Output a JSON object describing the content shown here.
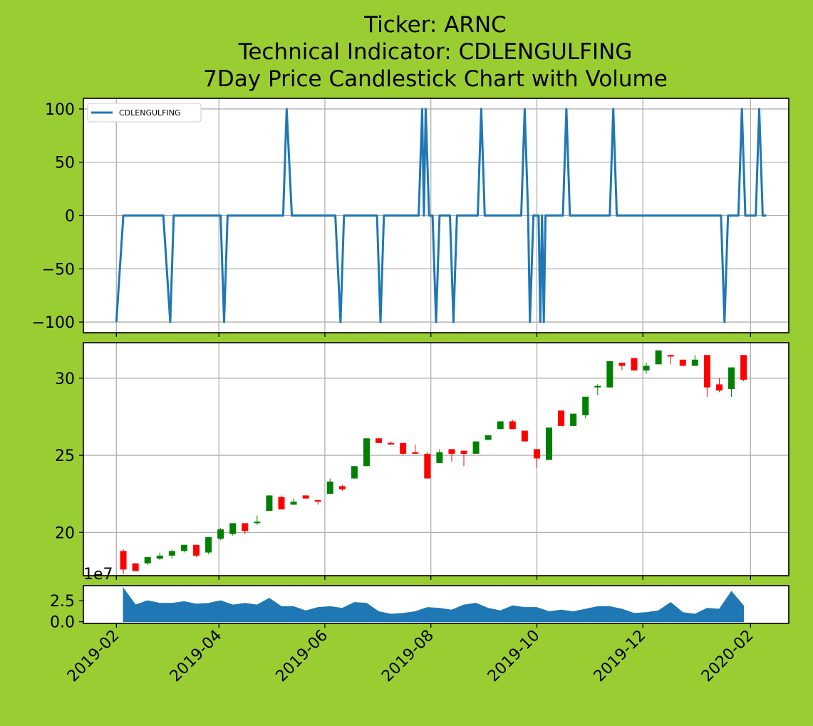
{
  "figure": {
    "background": "#9acd32",
    "title_lines": [
      "Ticker: ARNC",
      "Technical Indicator: CDLENGULFING",
      "7Day Price Candlestick Chart with Volume"
    ],
    "volume_offset_label": "1e7"
  },
  "chart_data": [
    {
      "type": "line",
      "panel": "indicator",
      "series": [
        {
          "name": "CDLENGULFING",
          "color": "#1f77b4",
          "points": [
            [
              "2019-02-01",
              -100
            ],
            [
              "2019-02-05",
              0
            ],
            [
              "2019-02-28",
              0
            ],
            [
              "2019-03-04",
              -100
            ],
            [
              "2019-03-06",
              0
            ],
            [
              "2019-04-02",
              0
            ],
            [
              "2019-04-04",
              -100
            ],
            [
              "2019-04-06",
              0
            ],
            [
              "2019-05-08",
              0
            ],
            [
              "2019-05-10",
              100
            ],
            [
              "2019-05-13",
              0
            ],
            [
              "2019-06-07",
              0
            ],
            [
              "2019-06-10",
              -100
            ],
            [
              "2019-06-12",
              0
            ],
            [
              "2019-07-01",
              0
            ],
            [
              "2019-07-03",
              -100
            ],
            [
              "2019-07-05",
              0
            ],
            [
              "2019-07-25",
              0
            ],
            [
              "2019-07-27",
              100
            ],
            [
              "2019-07-28",
              0
            ],
            [
              "2019-07-29",
              100
            ],
            [
              "2019-07-31",
              0
            ],
            [
              "2019-08-02",
              0
            ],
            [
              "2019-08-04",
              -100
            ],
            [
              "2019-08-06",
              0
            ],
            [
              "2019-08-12",
              0
            ],
            [
              "2019-08-14",
              -100
            ],
            [
              "2019-08-16",
              0
            ],
            [
              "2019-08-28",
              0
            ],
            [
              "2019-08-30",
              100
            ],
            [
              "2019-09-01",
              0
            ],
            [
              "2019-09-22",
              0
            ],
            [
              "2019-09-24",
              100
            ],
            [
              "2019-09-26",
              0
            ],
            [
              "2019-09-27",
              -100
            ],
            [
              "2019-09-29",
              0
            ],
            [
              "2019-10-02",
              0
            ],
            [
              "2019-10-03",
              -100
            ],
            [
              "2019-10-04",
              0
            ],
            [
              "2019-10-05",
              -100
            ],
            [
              "2019-10-06",
              0
            ],
            [
              "2019-10-16",
              0
            ],
            [
              "2019-10-18",
              100
            ],
            [
              "2019-10-20",
              0
            ],
            [
              "2019-11-12",
              0
            ],
            [
              "2019-11-14",
              100
            ],
            [
              "2019-11-16",
              0
            ],
            [
              "2020-01-15",
              0
            ],
            [
              "2020-01-17",
              -100
            ],
            [
              "2020-01-19",
              0
            ],
            [
              "2020-01-25",
              0
            ],
            [
              "2020-01-27",
              100
            ],
            [
              "2020-01-29",
              0
            ],
            [
              "2020-02-04",
              0
            ],
            [
              "2020-02-06",
              100
            ],
            [
              "2020-02-08",
              0
            ],
            [
              "2020-02-10",
              0
            ]
          ]
        }
      ],
      "ylim": [
        -110,
        110
      ],
      "yticks": [
        100,
        50,
        0,
        -50,
        -100
      ],
      "yticklabels": [
        "100",
        "50",
        "0",
        "−50",
        "−100"
      ],
      "grid": true,
      "legend": "upper left"
    },
    {
      "type": "candlestick",
      "panel": "price",
      "up_color": "#008000",
      "down_color": "#ff0000",
      "candles": [
        [
          "2019-02-05",
          18.8,
          17.6,
          18.9,
          17.3
        ],
        [
          "2019-02-12",
          18.0,
          17.5,
          18.0,
          17.5
        ],
        [
          "2019-02-19",
          18.0,
          18.4,
          18.4,
          17.9
        ],
        [
          "2019-02-26",
          18.3,
          18.5,
          18.7,
          18.2
        ],
        [
          "2019-03-05",
          18.5,
          18.8,
          18.9,
          18.3
        ],
        [
          "2019-03-12",
          18.8,
          19.2,
          19.2,
          18.7
        ],
        [
          "2019-03-19",
          19.2,
          18.5,
          19.2,
          18.4
        ],
        [
          "2019-03-26",
          18.7,
          19.7,
          19.7,
          18.6
        ],
        [
          "2019-04-02",
          19.6,
          20.2,
          20.3,
          19.5
        ],
        [
          "2019-04-09",
          19.9,
          20.6,
          20.6,
          19.8
        ],
        [
          "2019-04-16",
          20.6,
          20.1,
          20.6,
          19.9
        ],
        [
          "2019-04-23",
          20.6,
          20.7,
          21.1,
          20.5
        ],
        [
          "2019-04-30",
          21.4,
          22.4,
          22.4,
          21.4
        ],
        [
          "2019-05-07",
          22.3,
          21.5,
          22.4,
          21.5
        ],
        [
          "2019-05-14",
          21.8,
          22.0,
          22.2,
          21.8
        ],
        [
          "2019-05-21",
          22.4,
          22.2,
          22.4,
          22.2
        ],
        [
          "2019-05-28",
          22.1,
          22.0,
          22.1,
          21.8
        ],
        [
          "2019-06-04",
          22.5,
          23.3,
          23.5,
          22.5
        ],
        [
          "2019-06-11",
          23.0,
          22.8,
          23.1,
          22.7
        ],
        [
          "2019-06-18",
          23.5,
          24.3,
          24.3,
          23.5
        ],
        [
          "2019-06-25",
          24.3,
          26.1,
          26.1,
          24.3
        ],
        [
          "2019-07-02",
          26.1,
          25.8,
          26.1,
          25.8
        ],
        [
          "2019-07-09",
          25.8,
          25.7,
          25.9,
          25.7
        ],
        [
          "2019-07-16",
          25.8,
          25.1,
          25.8,
          25.0
        ],
        [
          "2019-07-23",
          25.2,
          25.1,
          25.7,
          25.1
        ],
        [
          "2019-07-30",
          25.1,
          23.5,
          25.2,
          23.5
        ],
        [
          "2019-08-06",
          24.5,
          25.2,
          25.4,
          24.5
        ],
        [
          "2019-08-13",
          25.4,
          25.1,
          25.4,
          24.6
        ],
        [
          "2019-08-20",
          25.3,
          25.1,
          25.3,
          24.3
        ],
        [
          "2019-08-27",
          25.1,
          25.9,
          25.9,
          25.1
        ],
        [
          "2019-09-03",
          26.0,
          26.3,
          26.3,
          26.0
        ],
        [
          "2019-09-10",
          26.7,
          27.2,
          27.2,
          26.7
        ],
        [
          "2019-09-17",
          27.2,
          26.7,
          27.3,
          26.7
        ],
        [
          "2019-09-24",
          26.6,
          25.9,
          26.6,
          25.9
        ],
        [
          "2019-10-01",
          25.4,
          24.8,
          25.4,
          24.2
        ],
        [
          "2019-10-08",
          24.7,
          26.8,
          26.8,
          24.7
        ],
        [
          "2019-10-15",
          27.9,
          26.9,
          27.9,
          26.9
        ],
        [
          "2019-10-22",
          26.9,
          27.7,
          27.7,
          26.9
        ],
        [
          "2019-10-29",
          27.6,
          28.8,
          28.8,
          27.4
        ],
        [
          "2019-11-05",
          29.4,
          29.5,
          29.6,
          28.9
        ],
        [
          "2019-11-12",
          29.4,
          31.1,
          31.1,
          29.4
        ],
        [
          "2019-11-19",
          31.0,
          30.8,
          31.0,
          30.5
        ],
        [
          "2019-11-26",
          31.3,
          30.5,
          31.3,
          30.5
        ],
        [
          "2019-12-03",
          30.5,
          30.8,
          31.0,
          30.3
        ],
        [
          "2019-12-10",
          30.9,
          31.8,
          31.8,
          30.9
        ],
        [
          "2019-12-17",
          31.5,
          31.4,
          31.5,
          30.9
        ],
        [
          "2019-12-24",
          31.2,
          30.8,
          31.2,
          30.8
        ],
        [
          "2019-12-31",
          30.8,
          31.2,
          31.5,
          30.8
        ],
        [
          "2020-01-07",
          31.5,
          29.4,
          31.5,
          28.8
        ],
        [
          "2020-01-14",
          29.6,
          29.2,
          30.0,
          29.1
        ],
        [
          "2020-01-21",
          29.3,
          30.7,
          30.7,
          28.8
        ],
        [
          "2020-01-28",
          31.5,
          29.9,
          31.5,
          29.8
        ]
      ],
      "candle_fields": [
        "date",
        "open",
        "close",
        "high",
        "low"
      ],
      "ylim": [
        17.2,
        32.3
      ],
      "yticks": [
        30,
        25,
        20
      ],
      "grid": true
    },
    {
      "type": "area",
      "panel": "volume",
      "color": "#1f77b4",
      "x": [
        "2019-02-05",
        "2019-02-12",
        "2019-02-19",
        "2019-02-26",
        "2019-03-05",
        "2019-03-12",
        "2019-03-19",
        "2019-03-26",
        "2019-04-02",
        "2019-04-09",
        "2019-04-16",
        "2019-04-23",
        "2019-04-30",
        "2019-05-07",
        "2019-05-14",
        "2019-05-21",
        "2019-05-28",
        "2019-06-04",
        "2019-06-11",
        "2019-06-18",
        "2019-06-25",
        "2019-07-02",
        "2019-07-09",
        "2019-07-16",
        "2019-07-23",
        "2019-07-30",
        "2019-08-06",
        "2019-08-13",
        "2019-08-20",
        "2019-08-27",
        "2019-09-03",
        "2019-09-10",
        "2019-09-17",
        "2019-09-24",
        "2019-10-01",
        "2019-10-08",
        "2019-10-15",
        "2019-10-22",
        "2019-10-29",
        "2019-11-05",
        "2019-11-12",
        "2019-11-19",
        "2019-11-26",
        "2019-12-03",
        "2019-12-10",
        "2019-12-17",
        "2019-12-24",
        "2019-12-31",
        "2020-01-07",
        "2020-01-14",
        "2020-01-21",
        "2020-01-28"
      ],
      "values": [
        4.0,
        2.0,
        2.5,
        2.2,
        2.2,
        2.4,
        2.1,
        2.2,
        2.5,
        2.0,
        2.2,
        2.0,
        2.8,
        1.8,
        1.8,
        1.3,
        1.7,
        1.8,
        1.6,
        2.3,
        2.2,
        1.2,
        0.9,
        1.0,
        1.2,
        1.7,
        1.6,
        1.4,
        2.0,
        2.2,
        1.6,
        1.3,
        1.9,
        1.7,
        1.7,
        1.2,
        1.4,
        1.2,
        1.5,
        1.8,
        1.8,
        1.5,
        1.0,
        1.1,
        1.3,
        2.3,
        1.1,
        0.9,
        1.6,
        1.5,
        3.6,
        1.9
      ],
      "unit_multiplier": "1e7",
      "ylim": [
        -0.2,
        4.3
      ],
      "yticks": [
        2.5,
        0.0
      ],
      "yticklabels": [
        "2.5",
        "0.0"
      ]
    }
  ],
  "x_axis": {
    "tick_dates": [
      "2019-02-01",
      "2019-04-01",
      "2019-06-01",
      "2019-08-01",
      "2019-10-01",
      "2019-12-01",
      "2020-02-01"
    ],
    "tick_labels": [
      "2019-02",
      "2019-04",
      "2019-06",
      "2019-08",
      "2019-10",
      "2019-12",
      "2020-02"
    ],
    "range": [
      "2019-01-13",
      "2020-02-23"
    ]
  }
}
